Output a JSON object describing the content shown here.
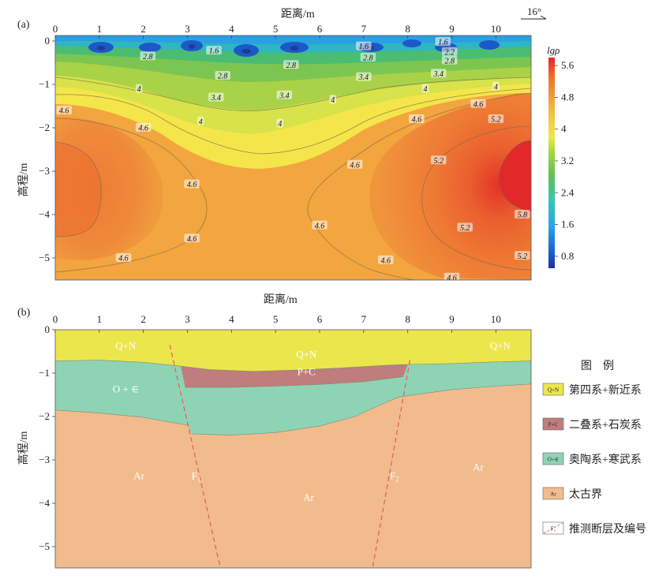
{
  "figure": {
    "panel_a_label": "(a)",
    "panel_b_label": "(b)",
    "strike_label": "16°"
  },
  "chart_data": [
    {
      "type": "heatmap",
      "panel": "a",
      "title": "",
      "xlabel": "距离/m",
      "ylabel": "高程/m",
      "xlim": [
        0,
        10.8
      ],
      "ylim": [
        -5.5,
        0.15
      ],
      "xticks": [
        "0",
        "1",
        "2",
        "3",
        "4",
        "5",
        "6",
        "7",
        "8",
        "9",
        "10"
      ],
      "yticks": [
        "0",
        "−1",
        "−2",
        "−3",
        "−4",
        "−5"
      ],
      "colorbar_label": "lgρ",
      "colorbar_ticks": [
        "5.6",
        "4.8",
        "4",
        "3.2",
        "2.4",
        "1.6",
        "0.8"
      ],
      "colorbar_range": [
        0.5,
        5.8
      ],
      "contour_labels": [
        {
          "text": "2.8",
          "x": 2.1,
          "y": -0.35
        },
        {
          "text": "1.6",
          "x": 3.6,
          "y": -0.22
        },
        {
          "text": "2.8",
          "x": 5.35,
          "y": -0.55
        },
        {
          "text": "1.6",
          "x": 7.0,
          "y": -0.12
        },
        {
          "text": "2.8",
          "x": 7.1,
          "y": -0.38
        },
        {
          "text": "1.6",
          "x": 8.8,
          "y": -0.02
        },
        {
          "text": "2.2",
          "x": 8.95,
          "y": -0.25
        },
        {
          "text": "2.8",
          "x": 8.95,
          "y": -0.45
        },
        {
          "text": "2.8",
          "x": 3.8,
          "y": -0.8
        },
        {
          "text": "3.4",
          "x": 7.0,
          "y": -0.83
        },
        {
          "text": "3.4",
          "x": 8.7,
          "y": -0.75
        },
        {
          "text": "4",
          "x": 1.9,
          "y": -1.1
        },
        {
          "text": "3.4",
          "x": 3.65,
          "y": -1.3
        },
        {
          "text": "3.4",
          "x": 5.2,
          "y": -1.25
        },
        {
          "text": "4",
          "x": 6.3,
          "y": -1.35
        },
        {
          "text": "4",
          "x": 8.4,
          "y": -1.1
        },
        {
          "text": "4",
          "x": 10.0,
          "y": -1.05
        },
        {
          "text": "4.6",
          "x": 0.2,
          "y": -1.6
        },
        {
          "text": "4",
          "x": 3.3,
          "y": -1.85
        },
        {
          "text": "4",
          "x": 5.1,
          "y": -1.9
        },
        {
          "text": "4.6",
          "x": 9.6,
          "y": -1.45
        },
        {
          "text": "4.6",
          "x": 2.0,
          "y": -2.0
        },
        {
          "text": "4.6",
          "x": 8.2,
          "y": -1.8
        },
        {
          "text": "5.2",
          "x": 10.0,
          "y": -1.8
        },
        {
          "text": "4.6",
          "x": 6.8,
          "y": -2.85
        },
        {
          "text": "5.2",
          "x": 8.7,
          "y": -2.75
        },
        {
          "text": "4.6",
          "x": 3.1,
          "y": -3.3
        },
        {
          "text": "5.8",
          "x": 10.6,
          "y": -4.0
        },
        {
          "text": "4.6",
          "x": 6.0,
          "y": -4.25
        },
        {
          "text": "5.2",
          "x": 9.3,
          "y": -4.3
        },
        {
          "text": "4.6",
          "x": 3.1,
          "y": -4.55
        },
        {
          "text": "4.6",
          "x": 1.55,
          "y": -5.0
        },
        {
          "text": "4.6",
          "x": 7.5,
          "y": -5.05
        },
        {
          "text": "5.2",
          "x": 10.6,
          "y": -4.95
        },
        {
          "text": "4.6",
          "x": 9.0,
          "y": -5.45
        }
      ]
    },
    {
      "type": "diagram",
      "panel": "b",
      "xlabel": "距离/m",
      "ylabel": "高程/m",
      "xlim": [
        0,
        10.8
      ],
      "ylim": [
        -5.5,
        0
      ],
      "xticks": [
        "0",
        "1",
        "2",
        "3",
        "4",
        "5",
        "6",
        "7",
        "8",
        "9",
        "10"
      ],
      "yticks": [
        "0",
        "−1",
        "−2",
        "−3",
        "−4",
        "−5"
      ],
      "boundaries": {
        "qn_base": [
          [
            0,
            -0.72
          ],
          [
            1,
            -0.7
          ],
          [
            2,
            -0.75
          ],
          [
            2.85,
            -0.84
          ],
          [
            3.5,
            -0.92
          ],
          [
            4.5,
            -0.96
          ],
          [
            5.5,
            -0.93
          ],
          [
            6.5,
            -0.88
          ],
          [
            7.5,
            -0.82
          ],
          [
            8.0,
            -0.8
          ],
          [
            9,
            -0.78
          ],
          [
            10,
            -0.74
          ],
          [
            10.8,
            -0.72
          ]
        ],
        "pc_base": [
          [
            2.95,
            -1.33
          ],
          [
            4.0,
            -1.33
          ],
          [
            5.0,
            -1.3
          ],
          [
            6.0,
            -1.26
          ],
          [
            7.0,
            -1.2
          ],
          [
            7.9,
            -1.08
          ]
        ],
        "oe_base_left": [
          [
            0,
            -1.85
          ],
          [
            1,
            -1.92
          ],
          [
            2,
            -2.02
          ],
          [
            3.0,
            -2.2
          ]
        ],
        "oe_base_middle": [
          [
            3.1,
            -2.4
          ],
          [
            4.0,
            -2.43
          ],
          [
            5.0,
            -2.37
          ],
          [
            6.0,
            -2.22
          ],
          [
            6.8,
            -2.0
          ],
          [
            7.4,
            -1.72
          ],
          [
            7.8,
            -1.55
          ]
        ],
        "oe_base_right": [
          [
            7.8,
            -1.55
          ],
          [
            9,
            -1.38
          ],
          [
            10,
            -1.3
          ],
          [
            10.8,
            -1.25
          ]
        ]
      },
      "faults": [
        {
          "name": "F1",
          "top": [
            2.6,
            -0.35
          ],
          "bottom": [
            3.75,
            -5.5
          ]
        },
        {
          "name": "F2",
          "top": [
            8.05,
            -0.7
          ],
          "bottom": [
            7.2,
            -5.5
          ]
        }
      ],
      "unit_labels": [
        {
          "text": "Q+N",
          "x": 1.6,
          "y": -0.35
        },
        {
          "text": "Q+N",
          "x": 5.7,
          "y": -0.55
        },
        {
          "text": "Q+N",
          "x": 10.1,
          "y": -0.35
        },
        {
          "text": "P+C",
          "x": 5.7,
          "y": -0.95
        },
        {
          "text": "O + ∈",
          "x": 1.6,
          "y": -1.35
        },
        {
          "text": "Ar",
          "x": 1.9,
          "y": -3.35
        },
        {
          "text": "Ar",
          "x": 5.75,
          "y": -3.85
        },
        {
          "text": "Ar",
          "x": 9.6,
          "y": -3.15
        }
      ],
      "fault_labels": [
        {
          "text": "F",
          "sub": "1",
          "x": 3.2,
          "y": -3.35
        },
        {
          "text": "F",
          "sub": "2",
          "x": 7.7,
          "y": -3.35
        }
      ]
    }
  ],
  "legend": {
    "title": "图　例",
    "items": [
      {
        "symbol": "Q+N",
        "label": "第四系+新近系",
        "color": "#ece64d"
      },
      {
        "symbol": "P+C",
        "label": "二叠系+石炭系",
        "color": "#bf7d7d"
      },
      {
        "symbol": "O+∈",
        "label": "奥陶系+寒武系",
        "color": "#8fd3b5"
      },
      {
        "symbol": "Ar",
        "label": "太古界",
        "color": "#f2bb8c"
      },
      {
        "symbol": "F₁",
        "label": "推测断层及编号",
        "color": "#ffffff"
      }
    ]
  },
  "colors": {
    "qn": "#ece64d",
    "pc": "#bf7d7d",
    "oe": "#8fd3b5",
    "ar": "#f2bb8c",
    "fault": "#e25b5b"
  }
}
